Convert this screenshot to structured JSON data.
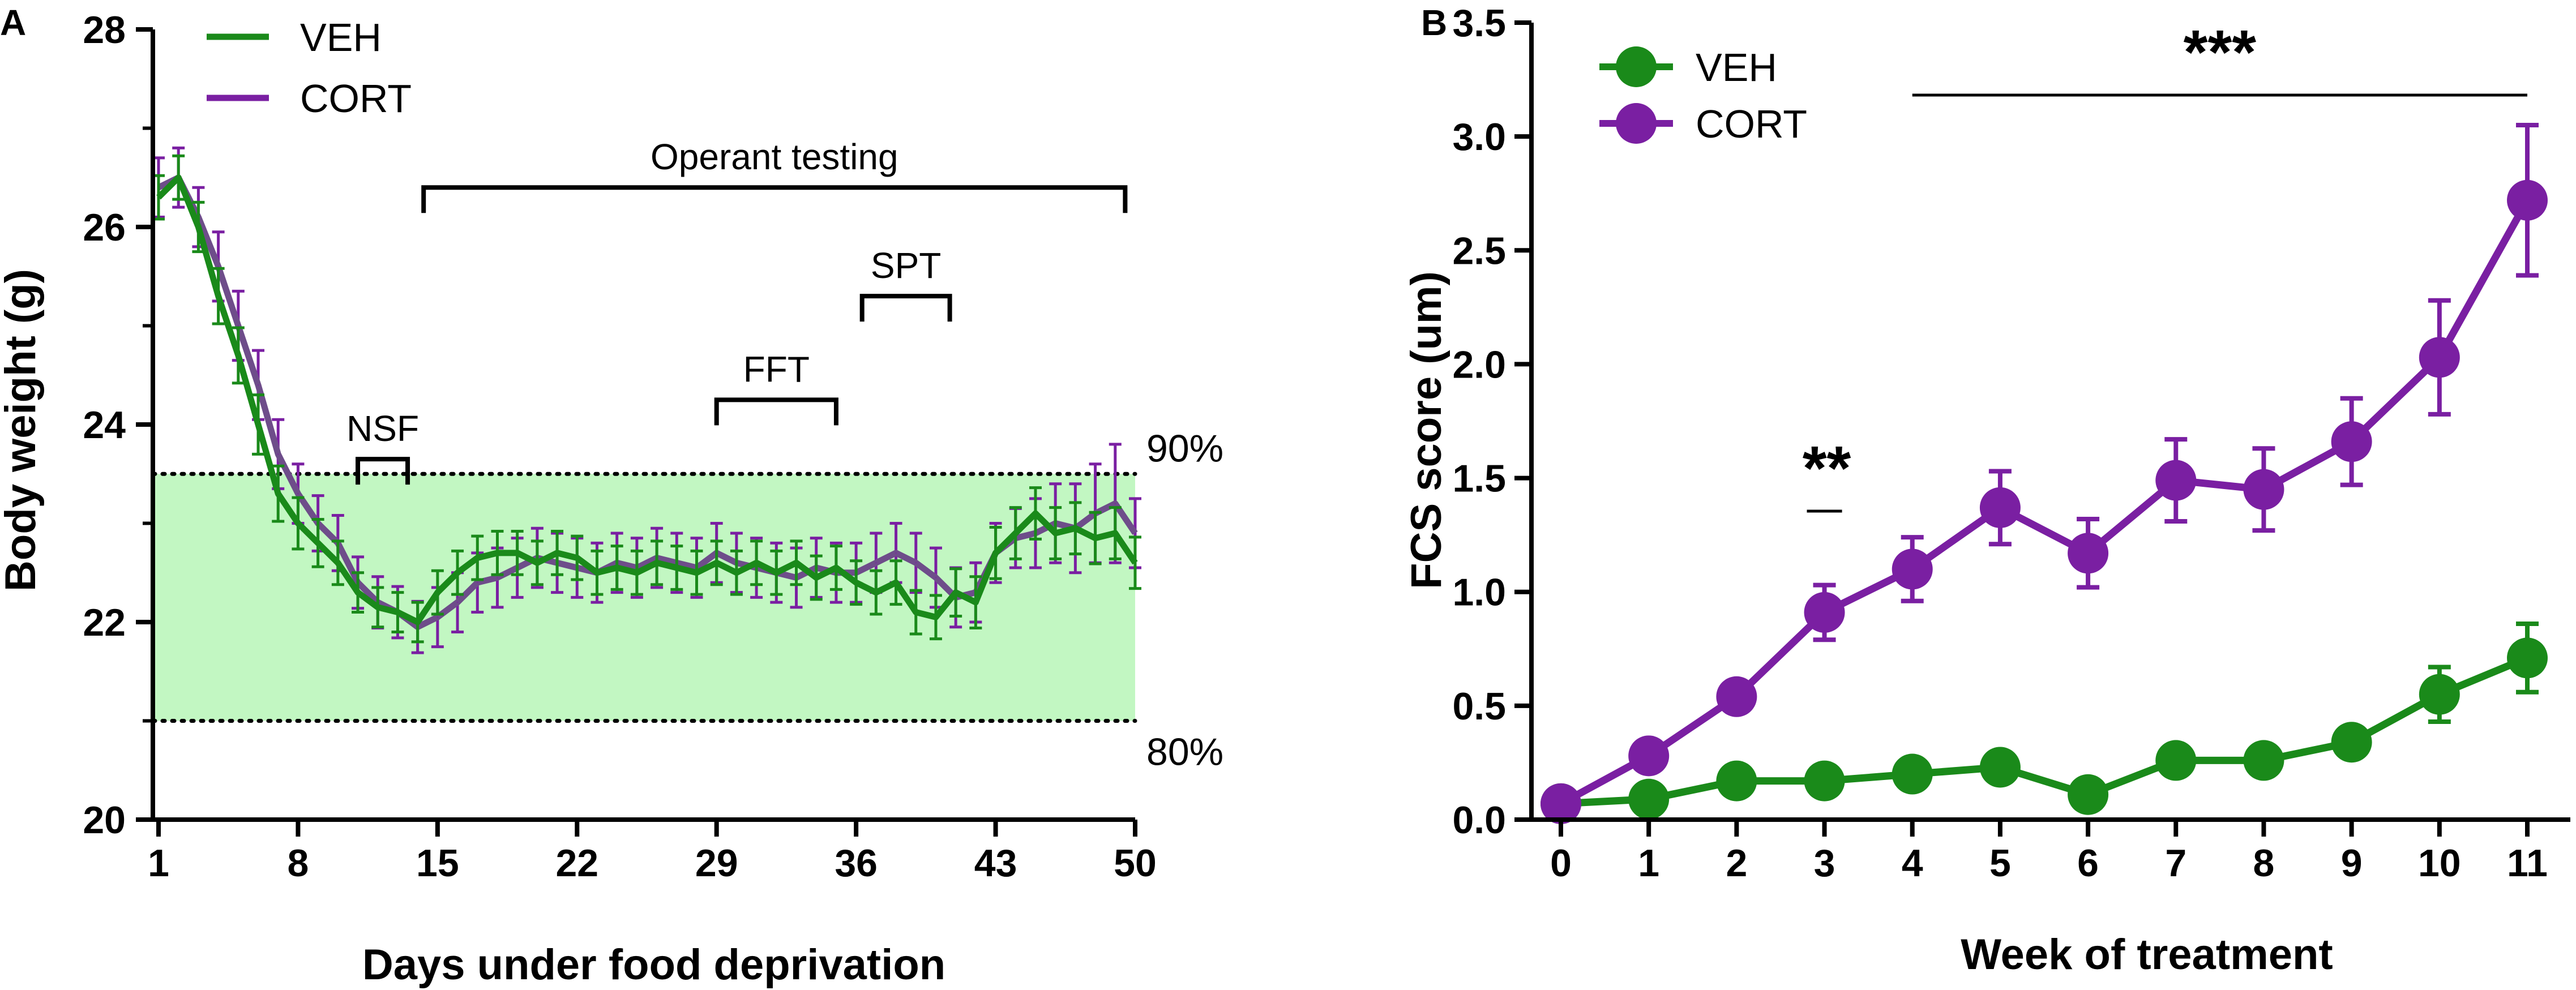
{
  "colors": {
    "veh": "#1a8a1a",
    "cort": "#7a1fa2",
    "band": "#c2f7c2",
    "axis": "#000000"
  },
  "chart_data": [
    {
      "panel": "A",
      "type": "line",
      "xlabel": "Days under food deprivation",
      "ylabel": "Body weight (g)",
      "xlim": [
        1,
        50
      ],
      "ylim": [
        20,
        28
      ],
      "x_ticks": [
        "1",
        "8",
        "15",
        "22",
        "29",
        "36",
        "43",
        "50"
      ],
      "y_ticks": [
        "20",
        "22",
        "24",
        "26",
        "28"
      ],
      "legend": [
        "VEH",
        "CORT"
      ],
      "band": {
        "low": 21,
        "high": 23.5,
        "low_label": "80%",
        "high_label": "90%"
      },
      "annotations": [
        {
          "label": "NSF",
          "start": 11,
          "end": 13.5,
          "level": 23.65
        },
        {
          "label": "FFT",
          "start": 29,
          "end": 35,
          "level": 24.25
        },
        {
          "label": "SPT",
          "start": 36.3,
          "end": 40.7,
          "level": 25.3
        },
        {
          "label": "Operant testing",
          "start": 14.3,
          "end": 49.5,
          "level": 26.4
        }
      ],
      "series": [
        {
          "name": "VEH",
          "x": [
            1,
            2,
            3,
            4,
            5,
            6,
            7,
            8,
            9,
            10,
            11,
            12,
            13,
            14,
            15,
            16,
            17,
            18,
            19,
            20,
            21,
            22,
            23,
            24,
            25,
            26,
            27,
            28,
            29,
            30,
            31,
            32,
            33,
            34,
            35,
            36,
            37,
            38,
            39,
            40,
            41,
            42,
            43,
            44,
            45,
            46,
            47,
            48,
            49,
            50
          ],
          "y": [
            26.3,
            26.5,
            26.0,
            25.3,
            24.7,
            24.0,
            23.3,
            23.0,
            22.8,
            22.6,
            22.3,
            22.15,
            22.1,
            22.0,
            22.3,
            22.5,
            22.65,
            22.7,
            22.7,
            22.6,
            22.7,
            22.65,
            22.5,
            22.55,
            22.5,
            22.6,
            22.55,
            22.5,
            22.6,
            22.5,
            22.6,
            22.5,
            22.6,
            22.45,
            22.55,
            22.4,
            22.3,
            22.4,
            22.1,
            22.05,
            22.3,
            22.2,
            22.7,
            22.9,
            23.1,
            22.9,
            22.95,
            22.85,
            22.9,
            22.6
          ],
          "err": [
            0.22,
            0.22,
            0.25,
            0.28,
            0.28,
            0.3,
            0.28,
            0.26,
            0.24,
            0.22,
            0.2,
            0.2,
            0.2,
            0.2,
            0.22,
            0.22,
            0.22,
            0.22,
            0.22,
            0.22,
            0.22,
            0.22,
            0.22,
            0.22,
            0.22,
            0.22,
            0.22,
            0.22,
            0.22,
            0.22,
            0.22,
            0.22,
            0.22,
            0.22,
            0.22,
            0.22,
            0.22,
            0.22,
            0.22,
            0.22,
            0.24,
            0.26,
            0.26,
            0.26,
            0.26,
            0.26,
            0.26,
            0.26,
            0.26,
            0.26
          ]
        },
        {
          "name": "CORT",
          "x": [
            1,
            2,
            3,
            4,
            5,
            6,
            7,
            8,
            9,
            10,
            11,
            12,
            13,
            14,
            15,
            16,
            17,
            18,
            19,
            20,
            21,
            22,
            23,
            24,
            25,
            26,
            27,
            28,
            29,
            30,
            31,
            32,
            33,
            34,
            35,
            36,
            37,
            38,
            39,
            40,
            41,
            42,
            43,
            44,
            45,
            46,
            47,
            48,
            49,
            50
          ],
          "y": [
            26.4,
            26.5,
            26.1,
            25.6,
            25.0,
            24.4,
            23.7,
            23.3,
            23.0,
            22.8,
            22.4,
            22.2,
            22.1,
            21.95,
            22.05,
            22.2,
            22.4,
            22.45,
            22.55,
            22.65,
            22.6,
            22.55,
            22.5,
            22.6,
            22.55,
            22.65,
            22.6,
            22.55,
            22.7,
            22.6,
            22.55,
            22.5,
            22.45,
            22.55,
            22.5,
            22.5,
            22.6,
            22.7,
            22.6,
            22.45,
            22.25,
            22.3,
            22.7,
            22.85,
            22.9,
            23.0,
            22.95,
            23.1,
            23.2,
            22.9
          ],
          "err": [
            0.3,
            0.3,
            0.3,
            0.35,
            0.35,
            0.35,
            0.35,
            0.3,
            0.28,
            0.28,
            0.26,
            0.26,
            0.26,
            0.26,
            0.3,
            0.3,
            0.3,
            0.3,
            0.3,
            0.3,
            0.3,
            0.3,
            0.3,
            0.3,
            0.3,
            0.3,
            0.3,
            0.3,
            0.3,
            0.3,
            0.3,
            0.3,
            0.3,
            0.3,
            0.3,
            0.3,
            0.3,
            0.3,
            0.3,
            0.3,
            0.3,
            0.3,
            0.3,
            0.3,
            0.35,
            0.4,
            0.45,
            0.5,
            0.6,
            0.35
          ]
        }
      ]
    },
    {
      "panel": "B",
      "type": "line",
      "xlabel": "Week of treatment",
      "ylabel": "FCS score (um)",
      "xlim": [
        0,
        11
      ],
      "ylim": [
        0,
        3.5
      ],
      "x_ticks": [
        "0",
        "1",
        "2",
        "3",
        "4",
        "5",
        "6",
        "7",
        "8",
        "9",
        "10",
        "11"
      ],
      "y_ticks": [
        "0.0",
        "0.5",
        "1.0",
        "1.5",
        "2.0",
        "2.5",
        "3.0",
        "3.5"
      ],
      "legend": [
        "VEH",
        "CORT"
      ],
      "annotations": [
        {
          "label": "**",
          "start": 2.8,
          "end": 3.2
        },
        {
          "label": "***",
          "start": 4,
          "end": 11
        }
      ],
      "series": [
        {
          "name": "VEH",
          "x": [
            0,
            1,
            2,
            3,
            4,
            5,
            6,
            7,
            8,
            9,
            10,
            11
          ],
          "y": [
            0.07,
            0.09,
            0.17,
            0.17,
            0.2,
            0.23,
            0.11,
            0.26,
            0.26,
            0.34,
            0.55,
            0.71
          ],
          "err": [
            0.02,
            0.02,
            0.03,
            0.03,
            0.03,
            0.03,
            0.03,
            0.04,
            0.04,
            0.05,
            0.12,
            0.15
          ]
        },
        {
          "name": "CORT",
          "x": [
            0,
            1,
            2,
            3,
            4,
            5,
            6,
            7,
            8,
            9,
            10,
            11
          ],
          "y": [
            0.07,
            0.28,
            0.54,
            0.91,
            1.1,
            1.37,
            1.17,
            1.49,
            1.45,
            1.66,
            2.03,
            2.72
          ],
          "err": [
            0.02,
            0.03,
            0.04,
            0.12,
            0.14,
            0.16,
            0.15,
            0.18,
            0.18,
            0.19,
            0.25,
            0.33
          ]
        }
      ]
    }
  ],
  "panel_labels": [
    "A",
    "B"
  ]
}
